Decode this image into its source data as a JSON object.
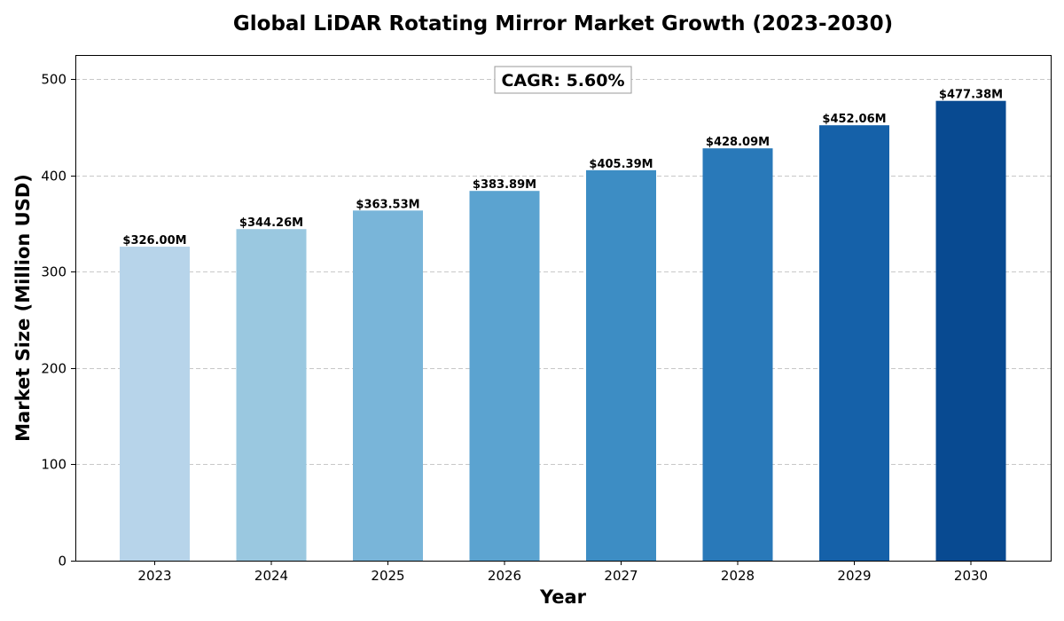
{
  "chart_data": {
    "type": "bar",
    "title": "Global LiDAR Rotating Mirror Market Growth (2023-2030)",
    "xlabel": "Year",
    "ylabel": "Market Size (Million USD)",
    "categories": [
      "2023",
      "2024",
      "2025",
      "2026",
      "2027",
      "2028",
      "2029",
      "2030"
    ],
    "values": [
      326.0,
      344.26,
      363.53,
      383.89,
      405.39,
      428.09,
      452.06,
      477.38
    ],
    "value_labels": [
      "$326.00M",
      "$344.26M",
      "$363.53M",
      "$383.89M",
      "$405.39M",
      "$428.09M",
      "$452.06M",
      "$477.38M"
    ],
    "colors": [
      "#b7d4ea",
      "#9ac8e0",
      "#79b5d9",
      "#5ba3d0",
      "#3d8dc4",
      "#2979b9",
      "#1561a9",
      "#084a91"
    ],
    "ylim": [
      0,
      525
    ],
    "yticks": [
      0,
      100,
      200,
      300,
      400,
      500
    ],
    "grid": true,
    "annotation": "CAGR: 5.60%"
  }
}
